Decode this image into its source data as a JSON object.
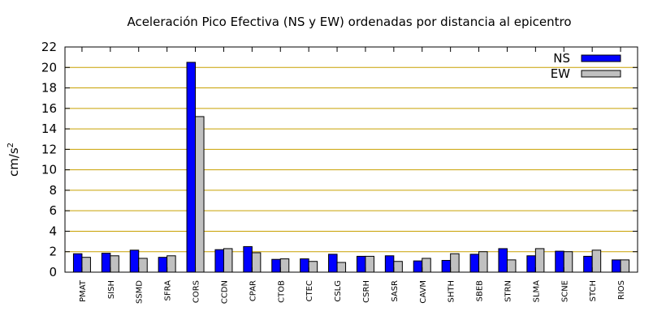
{
  "chart_data": {
    "type": "bar",
    "title": "Aceleración Pico Efectiva (NS y EW) ordenadas por distancia al epicentro",
    "xlabel": "",
    "ylabel": "cm/s",
    "ylabel_superscript": "2",
    "ylim": [
      0,
      22
    ],
    "yticks": [
      0,
      2,
      4,
      6,
      8,
      10,
      12,
      14,
      16,
      18,
      20,
      22
    ],
    "grid": "horizontal",
    "grid_color": "#c8a000",
    "legend_position": "top-right",
    "categories": [
      "PMAT",
      "SISH",
      "SSMD",
      "SFRA",
      "CORS",
      "CCDN",
      "CPAR",
      "CTOB",
      "CTEC",
      "CSLG",
      "CSRH",
      "SASR",
      "CAVM",
      "SHTH",
      "SBEB",
      "STRN",
      "SLMA",
      "SCNE",
      "STCH",
      "RIOS"
    ],
    "series": [
      {
        "name": "NS",
        "color": "#0000ff",
        "values": [
          1.8,
          1.85,
          2.15,
          1.45,
          20.5,
          2.2,
          2.5,
          1.25,
          1.3,
          1.75,
          1.55,
          1.6,
          1.1,
          1.15,
          1.75,
          2.3,
          1.6,
          2.05,
          1.55,
          1.2
        ]
      },
      {
        "name": "EW",
        "color": "#c0c0c0",
        "values": [
          1.45,
          1.6,
          1.35,
          1.6,
          15.2,
          2.3,
          1.9,
          1.3,
          1.05,
          0.95,
          1.55,
          1.05,
          1.35,
          1.8,
          2.0,
          1.2,
          2.3,
          2.0,
          2.15,
          1.2
        ]
      }
    ]
  }
}
